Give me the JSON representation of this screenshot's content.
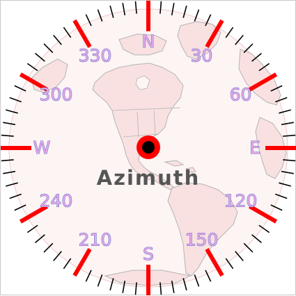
{
  "compass": {
    "title": "Azimuth",
    "labels": [
      {
        "text": "N",
        "bearing": 0
      },
      {
        "text": "30",
        "bearing": 30
      },
      {
        "text": "60",
        "bearing": 60
      },
      {
        "text": "E",
        "bearing": 90
      },
      {
        "text": "120",
        "bearing": 120
      },
      {
        "text": "150",
        "bearing": 150
      },
      {
        "text": "S",
        "bearing": 180
      },
      {
        "text": "210",
        "bearing": 210
      },
      {
        "text": "240",
        "bearing": 240
      },
      {
        "text": "W",
        "bearing": 270
      },
      {
        "text": "300",
        "bearing": 300
      },
      {
        "text": "330",
        "bearing": 330
      }
    ],
    "major_tick_interval_deg": 30,
    "minor_tick_interval_deg": 5,
    "colors": {
      "major_tick": "#ff0000",
      "minor_tick": "#000000",
      "land": "#f9e1e1",
      "land_outline": "#b4b4b4",
      "marker_outer": "#ff0000",
      "marker_inner": "#000000",
      "label_fill": "#e9a6e9",
      "label_stroke": "#5a78c8",
      "title": "#555555"
    }
  }
}
